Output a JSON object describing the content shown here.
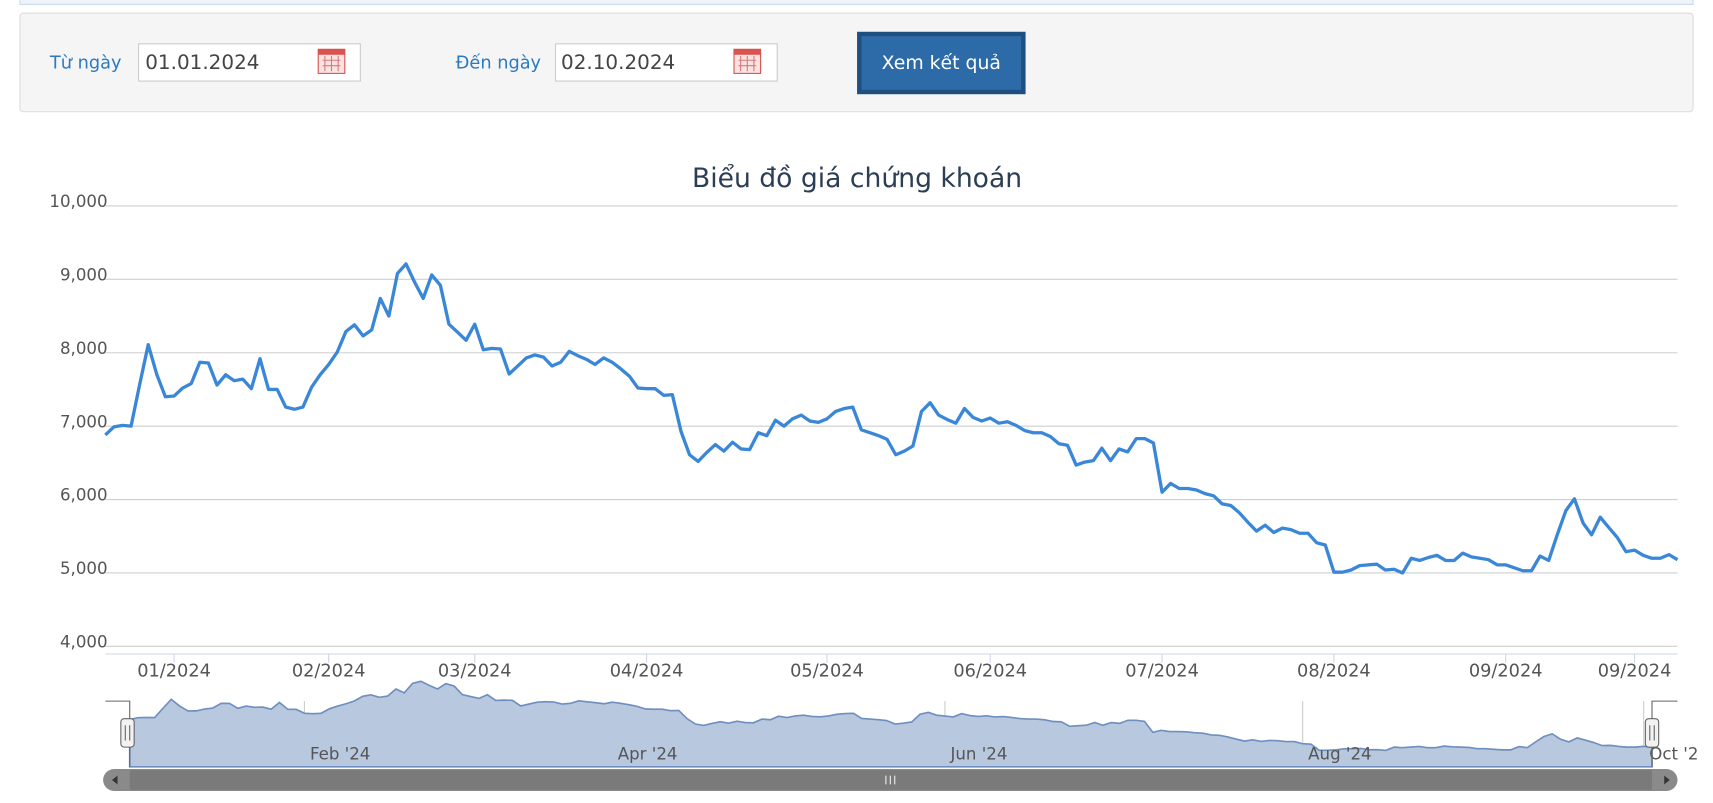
{
  "form": {
    "from_label": "Từ ngày",
    "from_value": "01.01.2024",
    "to_label": "Đến ngày",
    "to_value": "02.10.2024",
    "button": "Xem kết quả"
  },
  "chart_data": {
    "type": "line",
    "title": "Biểu đồ giá chứng khoán",
    "color": "#3a87d8",
    "grid": true,
    "values": [
      6880,
      6990,
      7010,
      7000,
      7570,
      8110,
      7700,
      7400,
      7410,
      7520,
      7580,
      7870,
      7860,
      7560,
      7700,
      7620,
      7640,
      7510,
      7920,
      7500,
      7500,
      7260,
      7230,
      7260,
      7530,
      7700,
      7840,
      8010,
      8290,
      8380,
      8230,
      8310,
      8740,
      8500,
      9080,
      9210,
      8960,
      8740,
      9060,
      8920,
      8390,
      8280,
      8170,
      8390,
      8040,
      8060,
      8050,
      7710,
      7820,
      7930,
      7970,
      7940,
      7820,
      7870,
      8020,
      7960,
      7910,
      7840,
      7930,
      7870,
      7780,
      7680,
      7520,
      7510,
      7510,
      7420,
      7430,
      6930,
      6610,
      6520,
      6640,
      6750,
      6660,
      6780,
      6690,
      6680,
      6910,
      6870,
      7080,
      7000,
      7100,
      7150,
      7070,
      7050,
      7100,
      7200,
      7240,
      7260,
      6950,
      6910,
      6870,
      6820,
      6610,
      6660,
      6730,
      7200,
      7320,
      7150,
      7090,
      7040,
      7240,
      7120,
      7070,
      7110,
      7040,
      7060,
      7010,
      6940,
      6910,
      6910,
      6860,
      6760,
      6740,
      6470,
      6510,
      6530,
      6700,
      6530,
      6690,
      6650,
      6830,
      6830,
      6770,
      6100,
      6220,
      6150,
      6150,
      6130,
      6080,
      6050,
      5940,
      5920,
      5820,
      5690,
      5570,
      5650,
      5550,
      5610,
      5590,
      5540,
      5540,
      5410,
      5380,
      5010,
      5010,
      5040,
      5100,
      5110,
      5120,
      5040,
      5050,
      5000,
      5200,
      5170,
      5210,
      5240,
      5170,
      5170,
      5270,
      5220,
      5200,
      5180,
      5110,
      5110,
      5070,
      5030,
      5030,
      5230,
      5170,
      5520,
      5850,
      6010,
      5680,
      5520,
      5760,
      5620,
      5480,
      5290,
      5310,
      5240,
      5200,
      5200,
      5250,
      5180
    ],
    "xlim": [
      0,
      183
    ],
    "xticks": [
      {
        "value": 8,
        "label": "01/2024"
      },
      {
        "value": 26,
        "label": "02/2024"
      },
      {
        "value": 43,
        "label": "03/2024"
      },
      {
        "value": 63,
        "label": "04/2024"
      },
      {
        "value": 84,
        "label": "05/2024"
      },
      {
        "value": 103,
        "label": "06/2024"
      },
      {
        "value": 123,
        "label": "07/2024"
      },
      {
        "value": 143,
        "label": "08/2024"
      },
      {
        "value": 163,
        "label": "09/2024"
      },
      {
        "value": 178,
        "label": "09/2024"
      }
    ],
    "ylim": [
      4000,
      10000
    ],
    "yticks": [
      {
        "value": 4000,
        "label": "4,000"
      },
      {
        "value": 5000,
        "label": "5,000"
      },
      {
        "value": 6000,
        "label": "6,000"
      },
      {
        "value": 7000,
        "label": "7,000"
      },
      {
        "value": 8000,
        "label": "8,000"
      },
      {
        "value": 9000,
        "label": "9,000"
      },
      {
        "value": 10000,
        "label": "10,000"
      }
    ],
    "navigator_xticks": [
      {
        "value": 21,
        "label": "Feb '24"
      },
      {
        "value": 58,
        "label": "Apr '24"
      },
      {
        "value": 98,
        "label": "Jun '24"
      },
      {
        "value": 141,
        "label": "Aug '24"
      },
      {
        "value": 182,
        "label": "Oct '2"
      }
    ]
  }
}
